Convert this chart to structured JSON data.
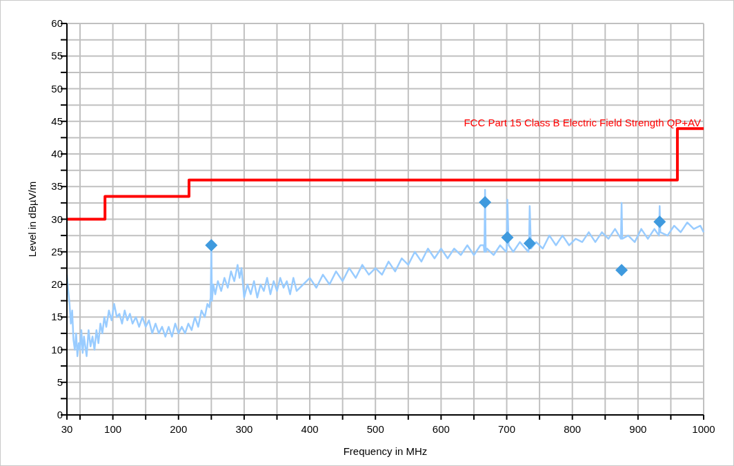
{
  "chart_data": {
    "type": "line",
    "xlabel": "Frequency in MHz",
    "ylabel": "Level in dBµV/m",
    "xlim": [
      30,
      1000
    ],
    "ylim": [
      0,
      60
    ],
    "xticks": [
      30,
      {
        "value": 50,
        "label": null
      },
      100,
      {
        "value": 150,
        "label": null
      },
      200,
      {
        "value": 250,
        "label": null
      },
      300,
      {
        "value": 350,
        "label": null
      },
      400,
      {
        "value": 450,
        "label": null
      },
      500,
      {
        "value": 550,
        "label": null
      },
      600,
      {
        "value": 650,
        "label": null
      },
      700,
      {
        "value": 750,
        "label": null
      },
      800,
      {
        "value": 850,
        "label": null
      },
      900,
      {
        "value": 950,
        "label": null
      },
      1000
    ],
    "yticks": [
      0,
      {
        "value": 2.5,
        "label": null
      },
      5,
      {
        "value": 7.5,
        "label": null
      },
      10,
      {
        "value": 12.5,
        "label": null
      },
      15,
      {
        "value": 17.5,
        "label": null
      },
      20,
      {
        "value": 22.5,
        "label": null
      },
      25,
      {
        "value": 27.5,
        "label": null
      },
      30,
      {
        "value": 32.5,
        "label": null
      },
      35,
      {
        "value": 37.5,
        "label": null
      },
      40,
      {
        "value": 42.5,
        "label": null
      },
      45,
      {
        "value": 47.5,
        "label": null
      },
      50,
      {
        "value": 52.5,
        "label": null
      },
      55,
      {
        "value": 57.5,
        "label": null
      },
      60
    ],
    "grid": true,
    "series": [
      {
        "color": "#99ccff",
        "x": [
          30,
          32,
          34,
          36,
          38,
          40,
          42,
          44,
          46,
          48,
          50,
          52,
          54,
          56,
          58,
          60,
          63,
          66,
          69,
          72,
          75,
          78,
          81,
          84,
          87,
          90,
          94,
          98,
          102,
          106,
          110,
          114,
          118,
          122,
          126,
          130,
          135,
          140,
          145,
          150,
          155,
          160,
          165,
          170,
          175,
          180,
          185,
          190,
          195,
          200,
          205,
          210,
          215,
          220,
          225,
          230,
          235,
          240,
          244,
          247,
          249,
          250,
          251,
          253,
          256,
          260,
          265,
          270,
          275,
          280,
          285,
          290,
          293,
          296,
          300,
          305,
          310,
          315,
          320,
          325,
          330,
          335,
          340,
          345,
          350,
          355,
          360,
          365,
          370,
          375,
          380,
          390,
          400,
          410,
          420,
          430,
          440,
          450,
          460,
          470,
          480,
          490,
          500,
          510,
          520,
          530,
          540,
          550,
          560,
          570,
          580,
          590,
          600,
          610,
          620,
          630,
          640,
          650,
          660,
          665,
          666,
          667,
          668,
          670,
          680,
          690,
          699,
          700,
          701,
          703,
          710,
          720,
          733,
          734,
          735,
          737,
          745,
          755,
          765,
          775,
          785,
          795,
          805,
          815,
          825,
          835,
          845,
          855,
          865,
          874,
          875,
          876,
          885,
          895,
          905,
          915,
          925,
          932,
          933,
          934,
          945,
          955,
          965,
          975,
          985,
          995,
          1000
        ],
        "values": [
          21.5,
          19,
          17,
          14,
          16,
          11.5,
          10,
          12.5,
          9,
          11,
          10,
          13,
          9.5,
          12,
          10.5,
          9,
          13,
          10.5,
          12,
          10,
          13,
          11,
          14,
          12.5,
          15,
          13.5,
          16,
          14.5,
          17,
          15,
          15.5,
          14,
          16,
          14.5,
          15.5,
          14,
          15,
          13.5,
          15,
          13.5,
          14.5,
          12.5,
          14,
          12.5,
          13.5,
          12,
          13.5,
          12,
          14,
          12.5,
          13.5,
          12.5,
          14,
          13,
          15,
          13.5,
          16,
          15,
          17,
          16.5,
          18,
          25.5,
          17.5,
          20,
          18.5,
          20.5,
          19,
          21,
          19.5,
          22,
          20.5,
          23,
          21,
          22.5,
          18,
          20,
          18.5,
          20.5,
          18,
          20,
          19,
          21,
          18.5,
          20.5,
          19,
          21,
          19.5,
          20.5,
          18.5,
          21,
          19,
          20,
          21,
          19.5,
          21.5,
          20,
          22,
          20.5,
          22.5,
          21,
          23,
          21.5,
          22.5,
          21.5,
          23.5,
          22,
          24,
          23,
          25,
          23.5,
          25.5,
          24,
          25.5,
          24,
          25.5,
          24.5,
          26,
          24.5,
          26,
          26,
          25,
          34.5,
          25,
          25.5,
          24.5,
          26,
          25,
          25.5,
          33,
          26,
          25,
          26.5,
          25,
          26,
          32,
          25.5,
          26.5,
          25.5,
          27.5,
          26,
          27.5,
          26,
          27,
          26.5,
          28,
          26.5,
          28,
          27,
          28.5,
          27,
          32.5,
          27,
          27.5,
          26.5,
          28.5,
          27,
          28.5,
          27.5,
          32,
          28,
          27.5,
          29,
          28,
          29.5,
          28.5,
          29,
          28
        ]
      },
      {
        "name": "FCC Part 15 Class B Electric Field Strength QP+AV",
        "type": "step",
        "color": "#ff0000",
        "x": [
          30,
          88,
          216,
          960,
          1000
        ],
        "values": [
          30,
          33.5,
          36,
          43.9,
          43.9
        ]
      },
      {
        "type": "scatter",
        "marker": "diamond",
        "color": "#3f9ade",
        "x": [
          250,
          667,
          701,
          735,
          875,
          933
        ],
        "values": [
          26,
          32.6,
          27.2,
          26.3,
          22.2,
          29.6
        ]
      }
    ]
  }
}
